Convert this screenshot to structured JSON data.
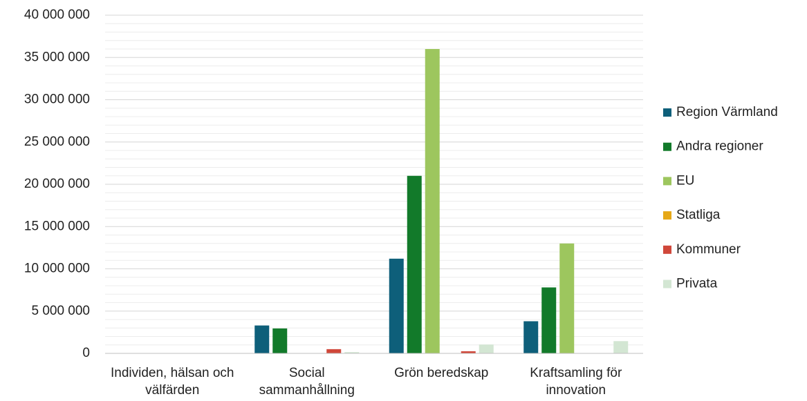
{
  "chart_data": {
    "type": "bar",
    "categories": [
      "Individen, hälsan och välfärden",
      "Social sammanhållning",
      "Grön beredskap",
      "Kraftsamling för innovation"
    ],
    "series": [
      {
        "name": "Region Värmland",
        "color": "#0e5f7a",
        "values": [
          0,
          3300000,
          11200000,
          3800000
        ]
      },
      {
        "name": "Andra regioner",
        "color": "#127a2a",
        "values": [
          0,
          2950000,
          21000000,
          7800000
        ]
      },
      {
        "name": "EU",
        "color": "#9dc65e",
        "values": [
          0,
          0,
          36000000,
          13000000
        ]
      },
      {
        "name": "Statliga",
        "color": "#e6a817",
        "values": [
          0,
          0,
          0,
          0
        ]
      },
      {
        "name": "Kommuner",
        "color": "#d0473a",
        "values": [
          0,
          500000,
          250000,
          0
        ]
      },
      {
        "name": "Privata",
        "color": "#d3e6d3",
        "values": [
          0,
          150000,
          1050000,
          1450000
        ]
      }
    ],
    "ylim": [
      0,
      40000000
    ],
    "yticks": [
      0,
      {
        "value": 5000000,
        "label": "5 000 000"
      },
      {
        "value": 10000000,
        "label": "10 000 000"
      },
      {
        "value": 15000000,
        "label": "15 000 000"
      },
      {
        "value": 20000000,
        "label": "20 000 000"
      },
      {
        "value": 25000000,
        "label": "25 000 000"
      },
      {
        "value": 30000000,
        "label": "30 000 000"
      },
      {
        "value": 35000000,
        "label": "35 000 000"
      },
      {
        "value": 40000000,
        "label": "40 000 000"
      }
    ],
    "grid": true,
    "minor_grid": true,
    "legend": "right"
  }
}
